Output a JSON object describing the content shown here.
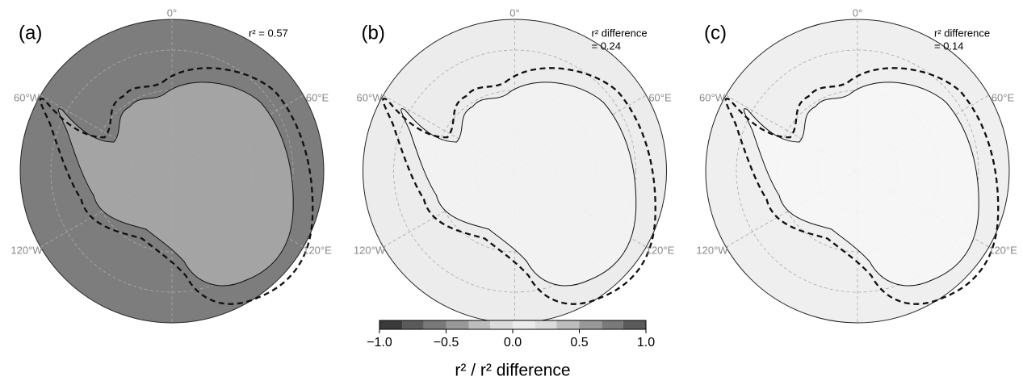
{
  "longitude_labels": [
    "0°",
    "60°W",
    "60°E",
    "120°W",
    "120°E"
  ],
  "panels": [
    {
      "label": "(a)",
      "annotation": [
        "r² = 0.57"
      ],
      "ocean": "#7d7d7d",
      "land": "#a8a8a8"
    },
    {
      "label": "(b)",
      "annotation": [
        "r² difference",
        "= 0.24"
      ],
      "ocean": "#ececec",
      "land": "#f3f3f3"
    },
    {
      "label": "(c)",
      "annotation": [
        "r² difference",
        "= 0.14"
      ],
      "ocean": "#efefef",
      "land": "#f6f6f6"
    }
  ],
  "colorbar": {
    "lim": [
      -1.0,
      1.0
    ],
    "bounds": [
      -1.0,
      -0.83,
      -0.67,
      -0.5,
      -0.33,
      -0.17,
      0.0,
      0.17,
      0.33,
      0.5,
      0.67,
      0.83,
      1.0
    ],
    "colors": [
      "#3a3a3a",
      "#5a5a5a",
      "#7a7a7a",
      "#999999",
      "#bdbdbd",
      "#dcdcdc",
      "#ececec",
      "#dcdcdc",
      "#bdbdbd",
      "#999999",
      "#7a7a7a",
      "#5a5a5a"
    ],
    "ticks": [
      {
        "value": -1.0,
        "label": "−1.0"
      },
      {
        "value": -0.5,
        "label": "−0.5"
      },
      {
        "value": 0.0,
        "label": "0.0"
      },
      {
        "value": 0.5,
        "label": "0.5"
      },
      {
        "value": 1.0,
        "label": "1.0"
      }
    ],
    "label": "r² / r² difference"
  }
}
